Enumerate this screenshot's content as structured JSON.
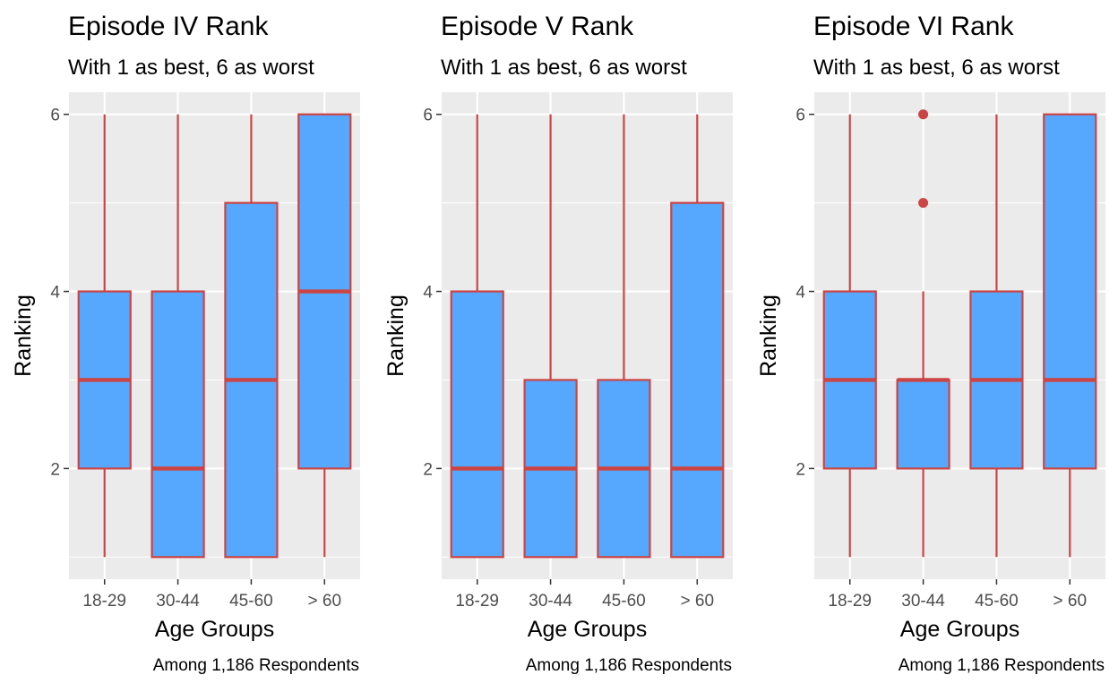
{
  "chart_data": [
    {
      "type": "boxplot",
      "title": "Episode IV Rank",
      "subtitle": "With 1 as best, 6 as worst",
      "xlabel": "Age Groups",
      "ylabel": "Ranking",
      "caption": "Among 1,186 Respondents",
      "categories": [
        "18-29",
        "30-44",
        "45-60",
        "> 60"
      ],
      "yticks": [
        2,
        4,
        6
      ],
      "ylim": [
        0.75,
        6.25
      ],
      "grid": true,
      "fill_color": "#56A8FF",
      "line_color": "#CC4444",
      "boxes": [
        {
          "min": 1,
          "q1": 2,
          "median": 3,
          "q3": 4,
          "max": 6,
          "outliers": []
        },
        {
          "min": 1,
          "q1": 1,
          "median": 2,
          "q3": 4,
          "max": 6,
          "outliers": []
        },
        {
          "min": 1,
          "q1": 1,
          "median": 3,
          "q3": 5,
          "max": 6,
          "outliers": []
        },
        {
          "min": 1,
          "q1": 2,
          "median": 4,
          "q3": 6,
          "max": 6,
          "outliers": []
        }
      ]
    },
    {
      "type": "boxplot",
      "title": "Episode V Rank",
      "subtitle": "With 1 as best, 6 as worst",
      "xlabel": "Age Groups",
      "ylabel": "Ranking",
      "caption": "Among 1,186 Respondents",
      "categories": [
        "18-29",
        "30-44",
        "45-60",
        "> 60"
      ],
      "yticks": [
        2,
        4,
        6
      ],
      "ylim": [
        0.75,
        6.25
      ],
      "grid": true,
      "fill_color": "#56A8FF",
      "line_color": "#CC4444",
      "boxes": [
        {
          "min": 1,
          "q1": 1,
          "median": 2,
          "q3": 4,
          "max": 6,
          "outliers": []
        },
        {
          "min": 1,
          "q1": 1,
          "median": 2,
          "q3": 3,
          "max": 6,
          "outliers": []
        },
        {
          "min": 1,
          "q1": 1,
          "median": 2,
          "q3": 3,
          "max": 6,
          "outliers": []
        },
        {
          "min": 1,
          "q1": 1,
          "median": 2,
          "q3": 5,
          "max": 6,
          "outliers": []
        }
      ]
    },
    {
      "type": "boxplot",
      "title": "Episode VI Rank",
      "subtitle": "With 1 as best, 6 as worst",
      "xlabel": "Age Groups",
      "ylabel": "Ranking",
      "caption": "Among 1,186 Respondents",
      "categories": [
        "18-29",
        "30-44",
        "45-60",
        "> 60"
      ],
      "yticks": [
        2,
        4,
        6
      ],
      "ylim": [
        0.75,
        6.25
      ],
      "grid": true,
      "fill_color": "#56A8FF",
      "line_color": "#CC4444",
      "boxes": [
        {
          "min": 1,
          "q1": 2,
          "median": 3,
          "q3": 4,
          "max": 6,
          "outliers": []
        },
        {
          "min": 1,
          "q1": 2,
          "median": 3,
          "q3": 3,
          "max": 4,
          "outliers": [
            5,
            6
          ]
        },
        {
          "min": 1,
          "q1": 2,
          "median": 3,
          "q3": 4,
          "max": 6,
          "outliers": []
        },
        {
          "min": 1,
          "q1": 2,
          "median": 3,
          "q3": 6,
          "max": 6,
          "outliers": []
        }
      ]
    }
  ]
}
